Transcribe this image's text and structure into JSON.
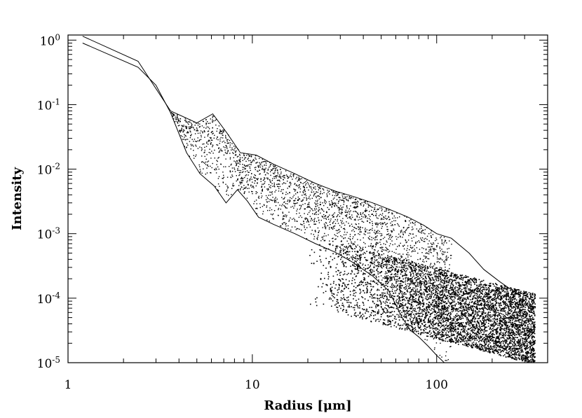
{
  "chart_data": {
    "type": "scatter",
    "title": "",
    "xlabel": "Radius [μm]",
    "ylabel": "Intensity",
    "xscale": "log",
    "yscale": "log",
    "xlim": [
      1,
      400
    ],
    "ylim": [
      1e-05,
      1.2
    ],
    "grid": false,
    "x_ticks": [
      {
        "value": 1,
        "label": "1"
      },
      {
        "value": 10,
        "label": "10"
      },
      {
        "value": 100,
        "label": "100"
      }
    ],
    "y_ticks": [
      {
        "value": 1,
        "base": "10",
        "exp": "0"
      },
      {
        "value": 0.1,
        "base": "10",
        "exp": "-1"
      },
      {
        "value": 0.01,
        "base": "10",
        "exp": "-2"
      },
      {
        "value": 0.001,
        "base": "10",
        "exp": "-3"
      },
      {
        "value": 0.0001,
        "base": "10",
        "exp": "-4"
      },
      {
        "value": 1e-05,
        "base": "10",
        "exp": "-5"
      }
    ],
    "series": [
      {
        "style": "line",
        "x": [
          1.2,
          2.4,
          3.6,
          5.0,
          6.1,
          7.3,
          8.6,
          10.5,
          13,
          17,
          22,
          28,
          35,
          45,
          55,
          70,
          85,
          100,
          120,
          150,
          180,
          220,
          270
        ],
        "y": [
          1.15,
          0.47,
          0.08,
          0.052,
          0.072,
          0.036,
          0.018,
          0.0165,
          0.012,
          0.0085,
          0.006,
          0.0046,
          0.0038,
          0.003,
          0.0024,
          0.0018,
          0.00135,
          0.001,
          0.00085,
          0.0005,
          0.00028,
          0.00018,
          0.00012
        ]
      },
      {
        "style": "line",
        "x": [
          1.2,
          2.4,
          3.0,
          3.6,
          4.4,
          5.2,
          6.2,
          7.2,
          8.3,
          9.4,
          10.8,
          13,
          17,
          22,
          28,
          35,
          45,
          55,
          65,
          72,
          80,
          90,
          100,
          110
        ],
        "y": [
          0.9,
          0.38,
          0.2,
          0.075,
          0.018,
          0.0085,
          0.0055,
          0.003,
          0.0048,
          0.0032,
          0.0018,
          0.0014,
          0.001,
          0.0007,
          0.00052,
          0.00036,
          0.00022,
          0.00013,
          5e-05,
          3.2e-05,
          2.5e-05,
          1.8e-05,
          1.3e-05,
          1e-05
        ]
      },
      {
        "style": "scatter",
        "description_free": true,
        "clusters": [
          {
            "x_range": [
              3.6,
              120
            ],
            "upper_line_series": 0,
            "lower_line_series": 1,
            "count": 2600
          },
          {
            "x_range": [
              20,
              340
            ],
            "y_range": [
              1e-05,
              0.0009
            ],
            "count": 5200
          }
        ]
      }
    ]
  }
}
